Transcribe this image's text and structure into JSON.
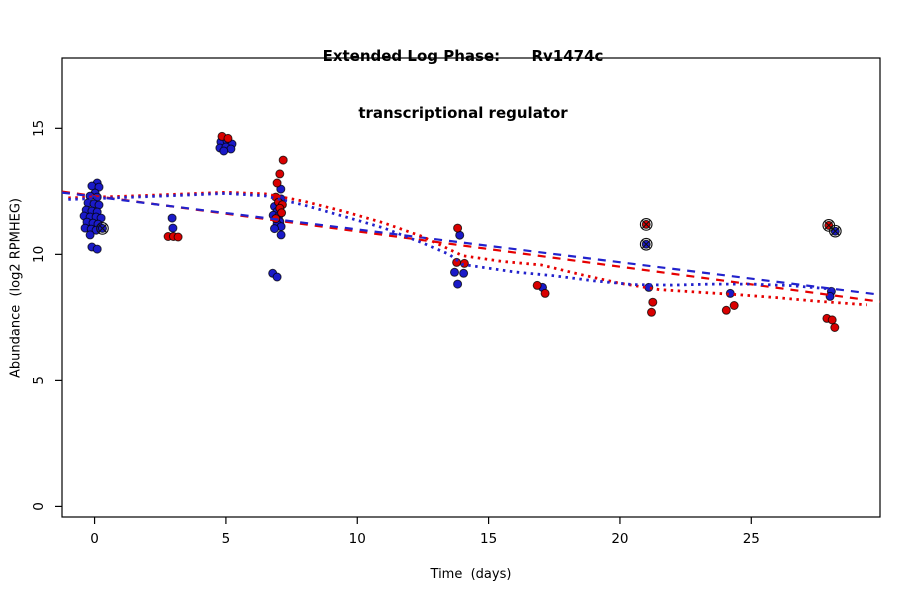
{
  "title": {
    "line1": "Extended Log Phase:      Rv1474c",
    "line2": "transcriptional regulator"
  },
  "chart_data": {
    "type": "scatter",
    "title": "Extended Log Phase: Rv1474c transcriptional regulator",
    "xlabel": "Time  (days)",
    "ylabel": "Abundance  (log2 RPMHEG)",
    "xlim": [
      -1.24,
      29.9
    ],
    "ylim": [
      -0.42,
      17.79
    ],
    "xticks": [
      0,
      5,
      10,
      15,
      20,
      25
    ],
    "yticks": [
      0,
      5,
      10,
      15
    ],
    "grid": false,
    "colors": {
      "point_red": "#d90000",
      "point_blue": "#1a1ac8",
      "line_red": "#e60000",
      "line_blue": "#2222cc",
      "point_stroke": "#000000",
      "axis": "#000000"
    },
    "series": [
      {
        "name": "blue-replicate-points",
        "color_key": "point_blue",
        "points": [
          [
            0.1,
            12.83
          ],
          [
            -0.1,
            12.71
          ],
          [
            0.17,
            12.67
          ],
          [
            0.02,
            12.43
          ],
          [
            -0.17,
            12.31
          ],
          [
            0.1,
            12.27
          ],
          [
            -0.25,
            12.04
          ],
          [
            -0.02,
            12.0
          ],
          [
            0.17,
            11.96
          ],
          [
            -0.32,
            11.76
          ],
          [
            -0.1,
            11.72
          ],
          [
            0.1,
            11.68
          ],
          [
            -0.4,
            11.52
          ],
          [
            -0.17,
            11.48
          ],
          [
            0.06,
            11.48
          ],
          [
            0.25,
            11.44
          ],
          [
            -0.29,
            11.28
          ],
          [
            -0.06,
            11.24
          ],
          [
            0.13,
            11.2
          ],
          [
            -0.36,
            11.04
          ],
          [
            -0.13,
            11.0
          ],
          [
            0.06,
            10.96
          ],
          [
            -0.17,
            10.77
          ],
          [
            -0.1,
            10.29
          ],
          [
            0.1,
            10.21
          ],
          [
            0.3,
            11.03
          ],
          [
            2.95,
            11.44
          ],
          [
            2.98,
            11.04
          ],
          [
            4.81,
            14.46
          ],
          [
            5.04,
            14.5
          ],
          [
            5.23,
            14.38
          ],
          [
            4.77,
            14.22
          ],
          [
            5.0,
            14.26
          ],
          [
            5.19,
            14.18
          ],
          [
            4.92,
            14.1
          ],
          [
            7.09,
            12.59
          ],
          [
            7.1,
            12.2
          ],
          [
            6.85,
            11.9
          ],
          [
            6.95,
            11.7
          ],
          [
            6.8,
            11.55
          ],
          [
            7.0,
            11.5
          ],
          [
            7.05,
            11.3
          ],
          [
            6.95,
            11.2
          ],
          [
            7.1,
            11.1
          ],
          [
            6.85,
            11.02
          ],
          [
            7.1,
            10.77
          ],
          [
            6.78,
            9.25
          ],
          [
            6.95,
            9.1
          ],
          [
            13.9,
            10.76
          ],
          [
            13.7,
            9.29
          ],
          [
            14.05,
            9.25
          ],
          [
            13.82,
            8.82
          ],
          [
            17.05,
            8.69
          ],
          [
            21.1,
            8.69
          ],
          [
            21.0,
            10.4
          ],
          [
            24.2,
            8.45
          ],
          [
            28.05,
            8.53
          ],
          [
            28.0,
            8.33
          ],
          [
            28.2,
            10.92
          ]
        ]
      },
      {
        "name": "red-replicate-points",
        "color_key": "point_red",
        "points": [
          [
            2.8,
            10.71
          ],
          [
            3.0,
            10.71
          ],
          [
            3.18,
            10.69
          ],
          [
            4.85,
            14.68
          ],
          [
            5.08,
            14.6
          ],
          [
            7.18,
            13.74
          ],
          [
            7.05,
            13.19
          ],
          [
            6.95,
            12.83
          ],
          [
            6.9,
            12.27
          ],
          [
            7.0,
            12.07
          ],
          [
            7.15,
            11.97
          ],
          [
            7.05,
            11.83
          ],
          [
            7.12,
            11.65
          ],
          [
            6.9,
            11.42
          ],
          [
            13.82,
            11.04
          ],
          [
            13.78,
            9.68
          ],
          [
            14.08,
            9.64
          ],
          [
            16.85,
            8.77
          ],
          [
            17.15,
            8.45
          ],
          [
            21.25,
            8.1
          ],
          [
            21.2,
            7.7
          ],
          [
            21.0,
            11.19
          ],
          [
            24.35,
            7.97
          ],
          [
            24.05,
            7.78
          ],
          [
            27.88,
            7.46
          ],
          [
            28.08,
            7.4
          ],
          [
            28.18,
            7.1
          ],
          [
            27.95,
            11.15
          ]
        ]
      }
    ],
    "lines": [
      {
        "name": "red-linear-fit",
        "style": "dashed",
        "color_key": "line_red",
        "points": [
          [
            -1.24,
            12.49
          ],
          [
            29.9,
            8.12
          ]
        ]
      },
      {
        "name": "blue-linear-fit",
        "style": "dashed",
        "color_key": "line_blue",
        "points": [
          [
            -1.24,
            12.45
          ],
          [
            29.9,
            8.4
          ]
        ]
      },
      {
        "name": "red-loess-fit",
        "style": "dotted",
        "color_key": "line_red",
        "points": [
          [
            -1.0,
            12.24
          ],
          [
            0,
            12.27
          ],
          [
            1,
            12.3
          ],
          [
            3,
            12.38
          ],
          [
            5,
            12.46
          ],
          [
            6.5,
            12.4
          ],
          [
            8,
            12.1
          ],
          [
            9.5,
            11.7
          ],
          [
            11,
            11.25
          ],
          [
            12.5,
            10.7
          ],
          [
            14,
            9.95
          ],
          [
            15.5,
            9.72
          ],
          [
            17,
            9.58
          ],
          [
            18.5,
            9.2
          ],
          [
            20,
            8.85
          ],
          [
            21.5,
            8.6
          ],
          [
            23,
            8.5
          ],
          [
            24.5,
            8.4
          ],
          [
            26,
            8.28
          ],
          [
            27.5,
            8.14
          ],
          [
            29.4,
            8.0
          ]
        ]
      },
      {
        "name": "blue-loess-fit",
        "style": "dotted",
        "color_key": "line_blue",
        "points": [
          [
            -1.0,
            12.18
          ],
          [
            0,
            12.21
          ],
          [
            1,
            12.25
          ],
          [
            3,
            12.33
          ],
          [
            5,
            12.42
          ],
          [
            6.5,
            12.32
          ],
          [
            8,
            11.95
          ],
          [
            9.5,
            11.5
          ],
          [
            11,
            11.05
          ],
          [
            12.5,
            10.45
          ],
          [
            13.5,
            10.0
          ],
          [
            14,
            9.6
          ],
          [
            15,
            9.45
          ],
          [
            16,
            9.3
          ],
          [
            17.5,
            9.15
          ],
          [
            19,
            8.95
          ],
          [
            20.5,
            8.8
          ],
          [
            22,
            8.78
          ],
          [
            23.5,
            8.82
          ],
          [
            25,
            8.82
          ],
          [
            26.5,
            8.76
          ],
          [
            28.3,
            8.6
          ]
        ]
      }
    ],
    "outlier_marks": {
      "name": "circled-x-outlier-markers",
      "points": [
        [
          0.3,
          11.03
        ],
        [
          21.0,
          11.19
        ],
        [
          21.0,
          10.4
        ],
        [
          27.95,
          11.15
        ],
        [
          28.2,
          10.92
        ]
      ]
    }
  }
}
